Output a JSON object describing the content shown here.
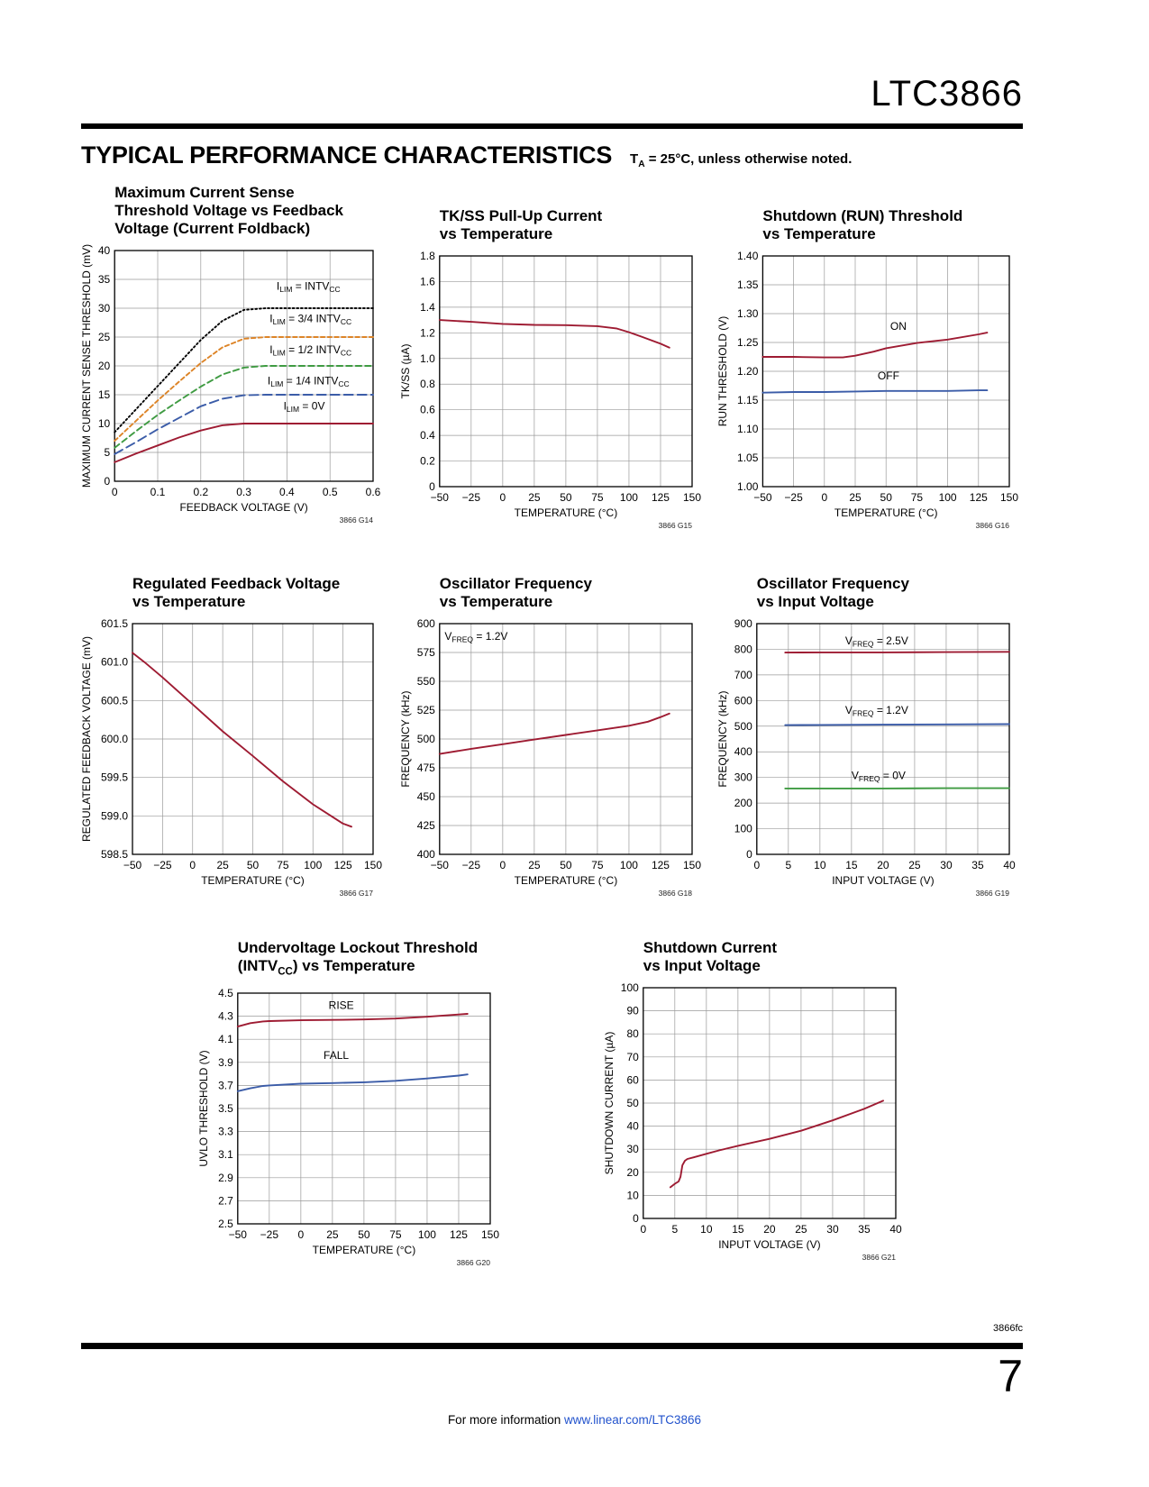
{
  "header": {
    "part_number": "LTC3866",
    "section_title": "TYPICAL PERFORMANCE CHARACTERISTICS",
    "section_note": "T_{A} = 25°C, unless otherwise noted."
  },
  "footer": {
    "doc_code": "3866fc",
    "page_number": "7",
    "info_prefix": "For more information ",
    "info_link": "www.linear.com/LTC3866",
    "link_color": "#2152cc"
  },
  "colors": {
    "curve_red": "#9e1b32",
    "curve_blue": "#3b5ca8",
    "curve_green": "#3f9b42",
    "curve_orange": "#dd8427",
    "curve_black": "#000000",
    "grid": "#9a9a9a"
  },
  "chart_data": [
    {
      "id": "G14",
      "type": "line",
      "title": "Maximum Current Sense\nThreshold Voltage vs Feedback\nVoltage (Current Foldback)",
      "xlabel": "FEEDBACK VOLTAGE (V)",
      "ylabel": "MAXIMUM CURRENT SENSE THRESHOLD (mV)",
      "xlim": [
        0,
        0.6
      ],
      "ylim": [
        0,
        40
      ],
      "xticks": [
        0,
        0.1,
        0.2,
        0.3,
        0.4,
        0.5,
        0.6
      ],
      "xtick_labels": [
        "0",
        "0.1",
        "0.2",
        "0.3",
        "0.4",
        "0.5",
        "0.6"
      ],
      "yticks": [
        0,
        5,
        10,
        15,
        20,
        25,
        30,
        35,
        40
      ],
      "ytick_labels": [
        "0",
        "5",
        "10",
        "15",
        "20",
        "25",
        "30",
        "35",
        "40"
      ],
      "ref": "3866 G14",
      "series": [
        {
          "name": "ILIM = INTVCC",
          "color": "#000000",
          "style": "dot",
          "x": [
            0,
            0.05,
            0.1,
            0.15,
            0.2,
            0.25,
            0.3,
            0.35,
            0.4,
            0.45,
            0.5,
            0.55,
            0.6
          ],
          "y": [
            8.5,
            12.5,
            16.5,
            20.5,
            24.5,
            27.8,
            29.7,
            30,
            30,
            30,
            30,
            30,
            30
          ]
        },
        {
          "name": "ILIM = 3/4 INTVCC",
          "color": "#dd8427",
          "style": "dash",
          "x": [
            0,
            0.05,
            0.1,
            0.15,
            0.2,
            0.25,
            0.3,
            0.35,
            0.4,
            0.45,
            0.5,
            0.55,
            0.6
          ],
          "y": [
            7,
            10.5,
            14,
            17.3,
            20.5,
            23.2,
            24.7,
            25,
            25,
            25,
            25,
            25,
            25
          ]
        },
        {
          "name": "ILIM = 1/2 INTVCC",
          "color": "#3f9b42",
          "style": "mdash",
          "x": [
            0,
            0.05,
            0.1,
            0.15,
            0.2,
            0.25,
            0.3,
            0.35,
            0.4,
            0.45,
            0.5,
            0.55,
            0.6
          ],
          "y": [
            5.8,
            8.7,
            11.5,
            14,
            16.4,
            18.5,
            19.7,
            20,
            20,
            20,
            20,
            20,
            20
          ]
        },
        {
          "name": "ILIM = 1/4 INTVCC",
          "color": "#3b5ca8",
          "style": "ldash",
          "x": [
            0,
            0.05,
            0.1,
            0.15,
            0.2,
            0.25,
            0.3,
            0.35,
            0.4,
            0.45,
            0.5,
            0.55,
            0.6
          ],
          "y": [
            4.7,
            6.8,
            9,
            11,
            13,
            14.3,
            14.9,
            15,
            15,
            15,
            15,
            15,
            15
          ]
        },
        {
          "name": "ILIM = 0V",
          "color": "#9e1b32",
          "style": "solid",
          "x": [
            0,
            0.05,
            0.1,
            0.15,
            0.2,
            0.25,
            0.3,
            0.35,
            0.4,
            0.45,
            0.5,
            0.55,
            0.6
          ],
          "y": [
            3.3,
            4.8,
            6.2,
            7.6,
            8.8,
            9.7,
            10,
            10,
            10,
            10,
            10,
            10,
            10
          ]
        }
      ],
      "annotations": [
        {
          "text": "I_{LIM} = INTV_{CC}",
          "x": 0.45,
          "y": 33.2,
          "anchor": "middle"
        },
        {
          "text": "I_{LIM} = 3/4 INTV_{CC}",
          "x": 0.455,
          "y": 27.6,
          "anchor": "middle"
        },
        {
          "text": "I_{LIM} = 1/2 INTV_{CC}",
          "x": 0.455,
          "y": 22.2,
          "anchor": "middle"
        },
        {
          "text": "I_{LIM} = 1/4 INTV_{CC}",
          "x": 0.45,
          "y": 16.8,
          "anchor": "middle"
        },
        {
          "text": "I_{LIM} = 0V",
          "x": 0.44,
          "y": 12.4,
          "anchor": "middle"
        }
      ]
    },
    {
      "id": "G15",
      "type": "line",
      "title": "TK/SS Pull-Up Current\nvs Temperature",
      "xlabel": "TEMPERATURE (°C)",
      "ylabel": "TK/SS (µA)",
      "xlim": [
        -50,
        150
      ],
      "ylim": [
        0,
        1.8
      ],
      "xticks": [
        -50,
        -25,
        0,
        25,
        50,
        75,
        100,
        125,
        150
      ],
      "xtick_labels": [
        "−50",
        "−25",
        "0",
        "25",
        "50",
        "75",
        "100",
        "125",
        "150"
      ],
      "yticks": [
        0,
        0.2,
        0.4,
        0.6,
        0.8,
        1.0,
        1.2,
        1.4,
        1.6,
        1.8
      ],
      "ytick_labels": [
        "0",
        "0.2",
        "0.4",
        "0.6",
        "0.8",
        "1.0",
        "1.2",
        "1.4",
        "1.6",
        "1.8"
      ],
      "ref": "3866 G15",
      "series": [
        {
          "name": "TK/SS pull-up current",
          "color": "#9e1b32",
          "style": "solid",
          "x": [
            -50,
            -25,
            0,
            25,
            50,
            75,
            90,
            100,
            110,
            125,
            132
          ],
          "y": [
            1.3,
            1.286,
            1.27,
            1.262,
            1.26,
            1.252,
            1.235,
            1.205,
            1.17,
            1.115,
            1.085
          ]
        }
      ],
      "annotations": []
    },
    {
      "id": "G16",
      "type": "line",
      "title": "Shutdown (RUN) Threshold\nvs Temperature",
      "xlabel": "TEMPERATURE (°C)",
      "ylabel": "RUN THRESHOLD (V)",
      "xlim": [
        -50,
        150
      ],
      "ylim": [
        1.0,
        1.4
      ],
      "xticks": [
        -50,
        -25,
        0,
        25,
        50,
        75,
        100,
        125,
        150
      ],
      "xtick_labels": [
        "−50",
        "−25",
        "0",
        "25",
        "50",
        "75",
        "100",
        "125",
        "150"
      ],
      "yticks": [
        1.0,
        1.05,
        1.1,
        1.15,
        1.2,
        1.25,
        1.3,
        1.35,
        1.4
      ],
      "ytick_labels": [
        "1.00",
        "1.05",
        "1.10",
        "1.15",
        "1.20",
        "1.25",
        "1.30",
        "1.35",
        "1.40"
      ],
      "ref": "3866 G16",
      "series": [
        {
          "name": "ON",
          "color": "#9e1b32",
          "style": "solid",
          "x": [
            -50,
            -25,
            0,
            15,
            25,
            40,
            50,
            75,
            100,
            125,
            132
          ],
          "y": [
            1.225,
            1.225,
            1.224,
            1.224,
            1.227,
            1.234,
            1.24,
            1.249,
            1.255,
            1.264,
            1.267
          ]
        },
        {
          "name": "OFF",
          "color": "#3b5ca8",
          "style": "solid",
          "x": [
            -50,
            -25,
            0,
            25,
            50,
            75,
            100,
            125,
            132
          ],
          "y": [
            1.163,
            1.164,
            1.164,
            1.165,
            1.166,
            1.166,
            1.166,
            1.167,
            1.167
          ]
        }
      ],
      "annotations": [
        {
          "text": "ON",
          "x": 60,
          "y": 1.272,
          "anchor": "middle"
        },
        {
          "text": "OFF",
          "x": 52,
          "y": 1.186,
          "anchor": "middle"
        }
      ]
    },
    {
      "id": "G17",
      "type": "line",
      "title": "Regulated Feedback Voltage\nvs Temperature",
      "xlabel": "TEMPERATURE (°C)",
      "ylabel": "REGULATED FEEDBACK VOLTAGE (mV)",
      "xlim": [
        -50,
        150
      ],
      "ylim": [
        598.5,
        601.5
      ],
      "xticks": [
        -50,
        -25,
        0,
        25,
        50,
        75,
        100,
        125,
        150
      ],
      "xtick_labels": [
        "−50",
        "−25",
        "0",
        "25",
        "50",
        "75",
        "100",
        "125",
        "150"
      ],
      "yticks": [
        598.5,
        599.0,
        599.5,
        600.0,
        600.5,
        601.0,
        601.5
      ],
      "ytick_labels": [
        "598.5",
        "599.0",
        "599.5",
        "600.0",
        "600.5",
        "601.0",
        "601.5"
      ],
      "ref": "3866 G17",
      "series": [
        {
          "name": "regulated feedback voltage",
          "color": "#9e1b32",
          "style": "solid",
          "x": [
            -50,
            -40,
            -25,
            0,
            25,
            50,
            75,
            100,
            110,
            125,
            132
          ],
          "y": [
            601.12,
            601.0,
            600.8,
            600.45,
            600.1,
            599.78,
            599.45,
            599.15,
            599.05,
            598.9,
            598.86
          ]
        }
      ],
      "annotations": []
    },
    {
      "id": "G18",
      "type": "line",
      "title": "Oscillator Frequency\nvs Temperature",
      "xlabel": "TEMPERATURE (°C)",
      "ylabel": "FREQUENCY (kHz)",
      "xlim": [
        -50,
        150
      ],
      "ylim": [
        400,
        600
      ],
      "xticks": [
        -50,
        -25,
        0,
        25,
        50,
        75,
        100,
        125,
        150
      ],
      "xtick_labels": [
        "−50",
        "−25",
        "0",
        "25",
        "50",
        "75",
        "100",
        "125",
        "150"
      ],
      "yticks": [
        400,
        425,
        450,
        475,
        500,
        525,
        550,
        575,
        600
      ],
      "ytick_labels": [
        "400",
        "425",
        "450",
        "475",
        "500",
        "525",
        "550",
        "575",
        "600"
      ],
      "ref": "3866 G18",
      "series": [
        {
          "name": "VFREQ = 1.2V",
          "color": "#9e1b32",
          "style": "solid",
          "x": [
            -50,
            -25,
            0,
            25,
            50,
            75,
            100,
            115,
            125,
            132
          ],
          "y": [
            487,
            491.5,
            495.5,
            499.5,
            503.5,
            507.5,
            511.5,
            515,
            519,
            522
          ]
        }
      ],
      "annotations": [
        {
          "text": "V_{FREQ} = 1.2V",
          "x": -46,
          "y": 586,
          "anchor": "start"
        }
      ]
    },
    {
      "id": "G19",
      "type": "line",
      "title": "Oscillator Frequency\nvs Input Voltage",
      "xlabel": "INPUT VOLTAGE (V)",
      "ylabel": "FREQUENCY (kHz)",
      "xlim": [
        0,
        40
      ],
      "ylim": [
        0,
        900
      ],
      "xticks": [
        0,
        5,
        10,
        15,
        20,
        25,
        30,
        35,
        40
      ],
      "xtick_labels": [
        "0",
        "5",
        "10",
        "15",
        "20",
        "25",
        "30",
        "35",
        "40"
      ],
      "yticks": [
        0,
        100,
        200,
        300,
        400,
        500,
        600,
        700,
        800,
        900
      ],
      "ytick_labels": [
        "0",
        "100",
        "200",
        "300",
        "400",
        "500",
        "600",
        "700",
        "800",
        "900"
      ],
      "ref": "3866 G19",
      "series": [
        {
          "name": "VFREQ = 2.5V",
          "color": "#9e1b32",
          "style": "solid",
          "x": [
            4.5,
            10,
            20,
            30,
            40
          ],
          "y": [
            787,
            788,
            788,
            789,
            790
          ]
        },
        {
          "name": "VFREQ = 1.2V",
          "color": "#3b5ca8",
          "style": "solid",
          "x": [
            4.5,
            10,
            20,
            30,
            40
          ],
          "y": [
            504,
            505,
            506,
            507,
            508
          ]
        },
        {
          "name": "VFREQ = 0V",
          "color": "#3f9b42",
          "style": "solid",
          "x": [
            4.5,
            10,
            20,
            30,
            40
          ],
          "y": [
            257,
            257,
            257,
            258,
            258
          ]
        }
      ],
      "annotations": [
        {
          "text": "V_{FREQ} = 2.5V",
          "x": 14,
          "y": 820,
          "anchor": "start"
        },
        {
          "text": "V_{FREQ} = 1.2V",
          "x": 14,
          "y": 548,
          "anchor": "start"
        },
        {
          "text": "V_{FREQ} = 0V",
          "x": 15,
          "y": 293,
          "anchor": "start"
        }
      ]
    },
    {
      "id": "G20",
      "type": "line",
      "title": "Undervoltage Lockout Threshold\n(INTV_{CC}) vs Temperature",
      "xlabel": "TEMPERATURE (°C)",
      "ylabel": "UVLO THRESHOLD (V)",
      "xlim": [
        -50,
        150
      ],
      "ylim": [
        2.5,
        4.5
      ],
      "xticks": [
        -50,
        -25,
        0,
        25,
        50,
        75,
        100,
        125,
        150
      ],
      "xtick_labels": [
        "−50",
        "−25",
        "0",
        "25",
        "50",
        "75",
        "100",
        "125",
        "150"
      ],
      "yticks": [
        2.5,
        2.7,
        2.9,
        3.1,
        3.3,
        3.5,
        3.7,
        3.9,
        4.1,
        4.3,
        4.5
      ],
      "ytick_labels": [
        "2.5",
        "2.7",
        "2.9",
        "3.1",
        "3.3",
        "3.5",
        "3.7",
        "3.9",
        "4.1",
        "4.3",
        "4.5"
      ],
      "ref": "3866 G20",
      "series": [
        {
          "name": "RISE",
          "color": "#9e1b32",
          "style": "solid",
          "x": [
            -50,
            -40,
            -30,
            -25,
            0,
            25,
            50,
            75,
            100,
            125,
            132
          ],
          "y": [
            4.21,
            4.24,
            4.255,
            4.258,
            4.265,
            4.268,
            4.272,
            4.28,
            4.295,
            4.315,
            4.32
          ]
        },
        {
          "name": "FALL",
          "color": "#3b5ca8",
          "style": "solid",
          "x": [
            -50,
            -40,
            -30,
            -25,
            0,
            25,
            50,
            75,
            100,
            125,
            132
          ],
          "y": [
            3.65,
            3.675,
            3.695,
            3.7,
            3.715,
            3.72,
            3.727,
            3.74,
            3.76,
            3.785,
            3.795
          ]
        }
      ],
      "annotations": [
        {
          "text": "RISE",
          "x": 32,
          "y": 4.365,
          "anchor": "middle"
        },
        {
          "text": "FALL",
          "x": 28,
          "y": 3.93,
          "anchor": "middle"
        }
      ]
    },
    {
      "id": "G21",
      "type": "line",
      "title": "Shutdown Current\nvs Input Voltage",
      "xlabel": "INPUT VOLTAGE (V)",
      "ylabel": "SHUTDOWN CURRENT (µA)",
      "xlim": [
        0,
        40
      ],
      "ylim": [
        0,
        100
      ],
      "xticks": [
        0,
        5,
        10,
        15,
        20,
        25,
        30,
        35,
        40
      ],
      "xtick_labels": [
        "0",
        "5",
        "10",
        "15",
        "20",
        "25",
        "30",
        "35",
        "40"
      ],
      "yticks": [
        0,
        10,
        20,
        30,
        40,
        50,
        60,
        70,
        80,
        90,
        100
      ],
      "ytick_labels": [
        "0",
        "10",
        "20",
        "30",
        "40",
        "50",
        "60",
        "70",
        "80",
        "90",
        "100"
      ],
      "ref": "3866 G21",
      "series": [
        {
          "name": "shutdown current",
          "color": "#9e1b32",
          "style": "solid",
          "x": [
            4.3,
            5,
            5.6,
            5.9,
            6.2,
            6.6,
            7,
            8,
            10,
            12,
            15,
            20,
            25,
            30,
            35,
            38
          ],
          "y": [
            13.5,
            15,
            16,
            18,
            23,
            25,
            25.8,
            26.5,
            28,
            29.5,
            31.5,
            34.5,
            38,
            42.5,
            47.5,
            51
          ]
        }
      ],
      "annotations": []
    }
  ]
}
